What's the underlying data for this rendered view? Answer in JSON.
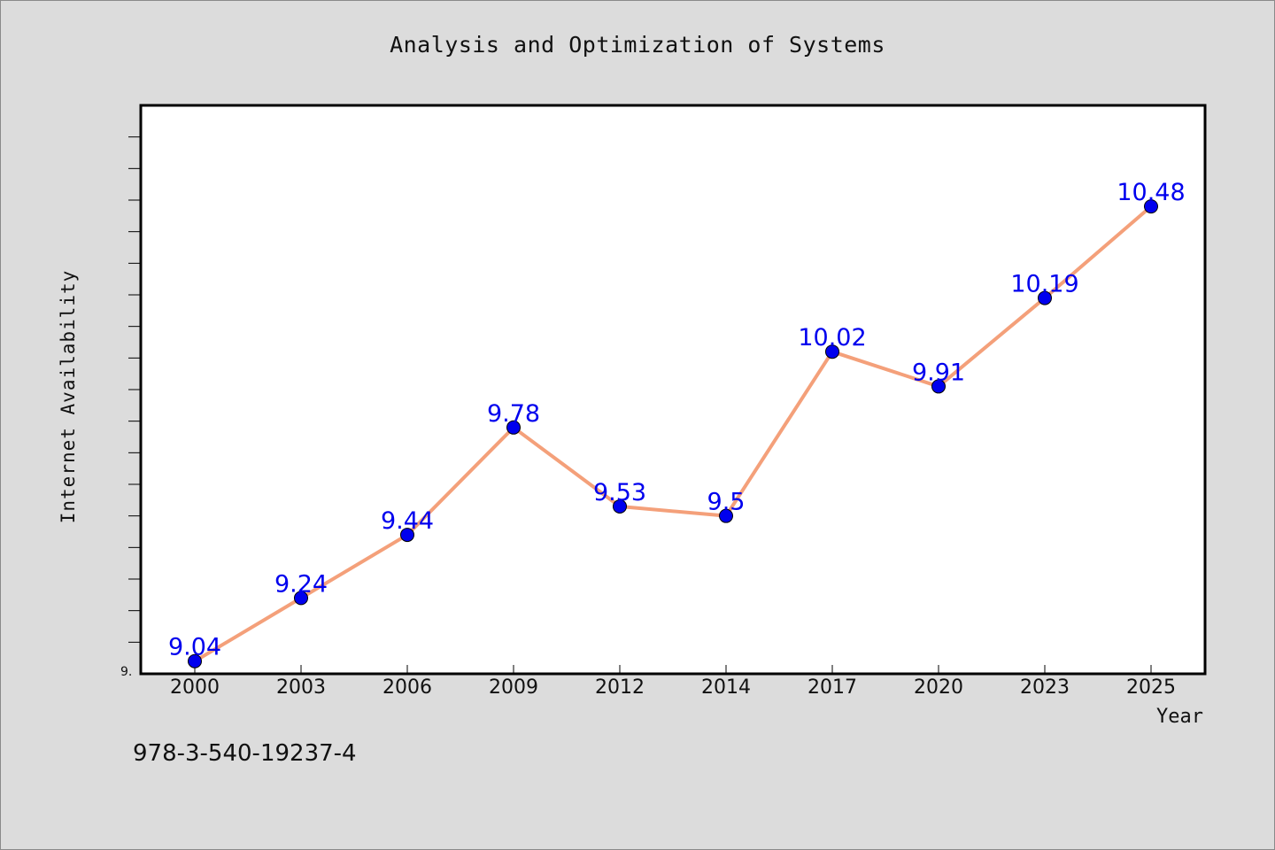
{
  "chart_data": {
    "type": "line",
    "title": "Analysis and Optimization of Systems",
    "xlabel": "Year",
    "ylabel": "Internet Availability",
    "categories": [
      "2000",
      "2003",
      "2006",
      "2009",
      "2012",
      "2014",
      "2017",
      "2020",
      "2023",
      "2025"
    ],
    "series": [
      {
        "values": [
          9.04,
          9.24,
          9.44,
          9.78,
          9.53,
          9.5,
          10.02,
          9.91,
          10.19,
          10.48
        ],
        "data_labels": [
          "9.04",
          "9.24",
          "9.44",
          "9.78",
          "9.53",
          "9.5",
          "10.02",
          "9.91",
          "10.19",
          "10.48"
        ],
        "line_color": "#f4a07a",
        "marker_color": "#0000ee",
        "label_color": "#0000ee"
      }
    ],
    "ylim": [
      9.0,
      10.8
    ],
    "y_tick_label": "9.",
    "grid": false
  },
  "footer": {
    "isbn": "978-3-540-19237-4"
  }
}
